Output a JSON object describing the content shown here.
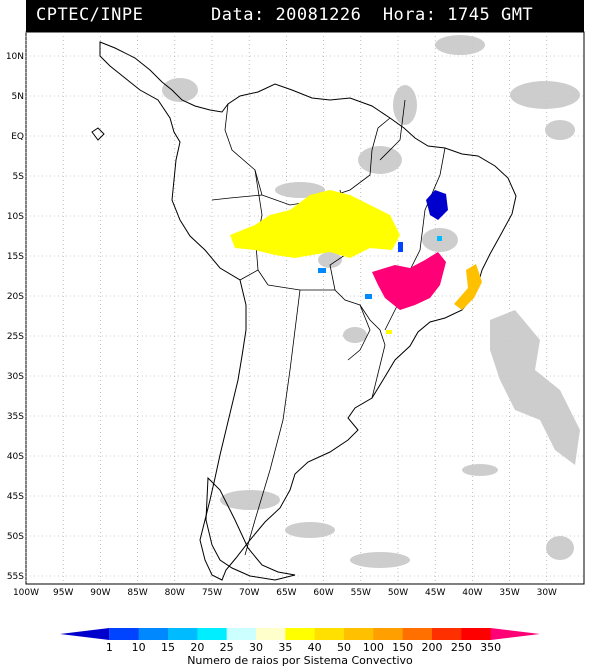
{
  "header": {
    "org": "CPTEC/INPE",
    "date_label": "Data:",
    "date_value": "20081226",
    "time_label": "Hora:",
    "time_value": "1745",
    "time_zone": "GMT"
  },
  "map": {
    "lon_range": [
      -100,
      -25
    ],
    "lat_range": [
      -56,
      13
    ],
    "lat_ticks": [
      "10N",
      "5N",
      "EQ",
      "5S",
      "10S",
      "15S",
      "20S",
      "25S",
      "30S",
      "35S",
      "40S",
      "45S",
      "50S",
      "55S"
    ],
    "lon_ticks": [
      "100W",
      "95W",
      "90W",
      "85W",
      "80W",
      "75W",
      "70W",
      "65W",
      "60W",
      "55W",
      "50W",
      "45W",
      "40W",
      "35W",
      "30W"
    ],
    "grid": "dotted"
  },
  "legend": {
    "caption": "Numero de raios por Sistema Convectivo",
    "values": [
      "1",
      "10",
      "15",
      "20",
      "25",
      "30",
      "35",
      "40",
      "50",
      "100",
      "150",
      "200",
      "250",
      "350"
    ],
    "colors": [
      "#0000cc",
      "#0044ff",
      "#0088ff",
      "#00bbff",
      "#00eeff",
      "#ccffff",
      "#ffffcc",
      "#ffff00",
      "#ffe000",
      "#ffc000",
      "#ffa000",
      "#ff7000",
      "#ff3000",
      "#ff0000",
      "#ff0077"
    ]
  },
  "palette": {
    "cloud": "#c8c8c8",
    "coast": "#000000",
    "header_bg": "#000000",
    "header_fg": "#ffffff"
  }
}
